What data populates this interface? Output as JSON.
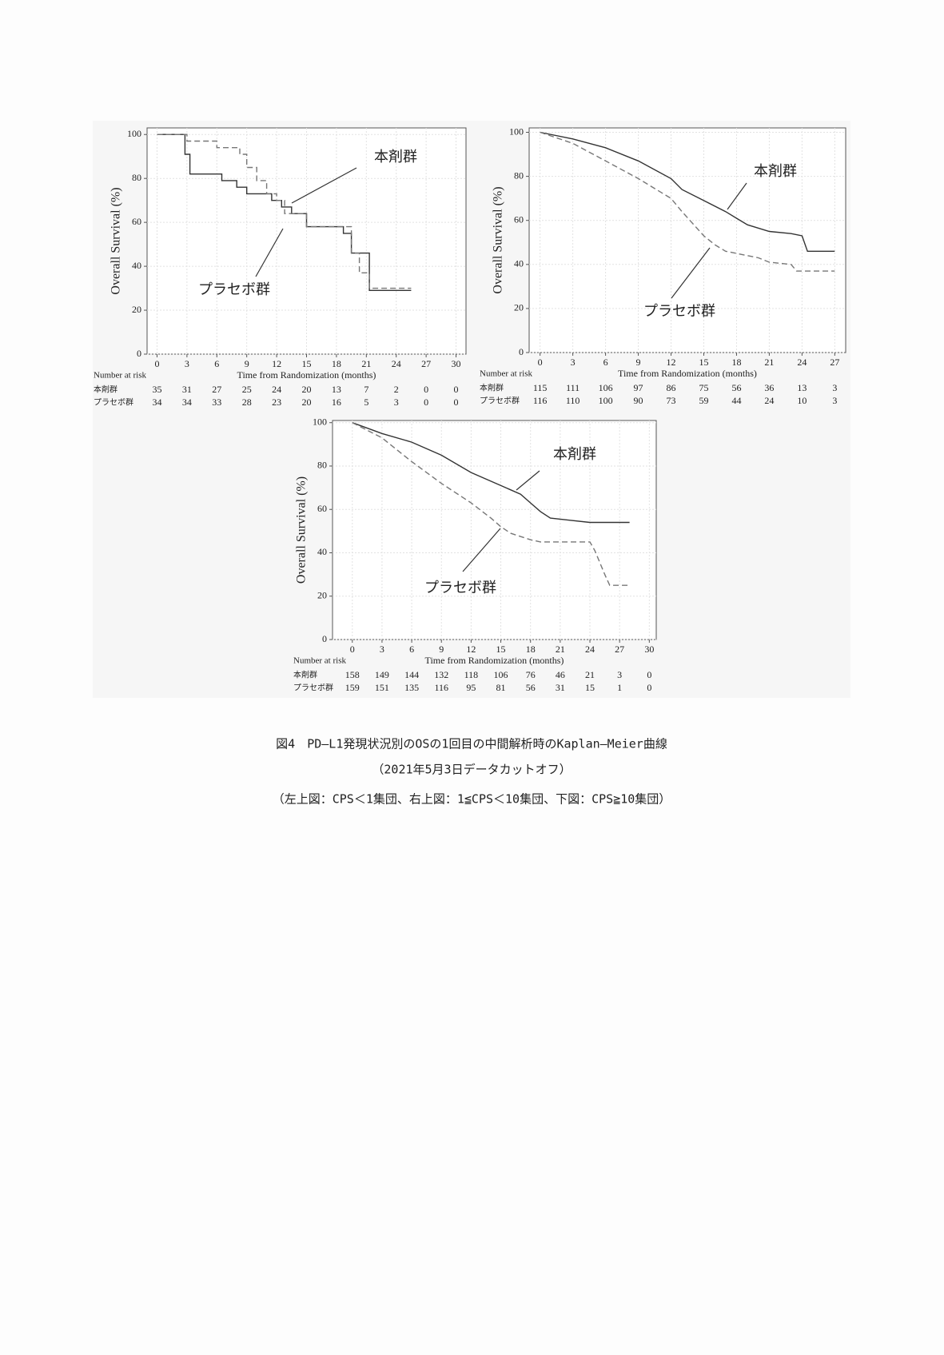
{
  "chart_data": [
    {
      "type": "line",
      "ylabel": "Overall Survival (%)",
      "xlabel": "Time from Randomization (months)",
      "xlim": [
        -1,
        31
      ],
      "ylim": [
        0,
        103
      ],
      "xticks": [
        0,
        3,
        6,
        9,
        12,
        15,
        18,
        21,
        24,
        27,
        30
      ],
      "yticks": [
        0,
        20,
        40,
        60,
        80,
        100
      ],
      "grid": true,
      "series": [
        {
          "name": "本剤群",
          "color": "#333333",
          "style": "solid",
          "x": [
            0,
            2.8,
            2.8,
            3.3,
            3.3,
            6.5,
            6.5,
            8,
            8,
            9,
            9,
            11.5,
            11.5,
            12.5,
            12.5,
            13.5,
            13.5,
            15,
            15,
            18.7,
            18.7,
            19.5,
            19.5,
            21.3,
            21.3,
            25.5
          ],
          "values": [
            100,
            100,
            91,
            91,
            82,
            82,
            79,
            79,
            76,
            76,
            73,
            73,
            70,
            70,
            67,
            67,
            64,
            64,
            58,
            58,
            55,
            55,
            46,
            46,
            29,
            29
          ]
        },
        {
          "name": "プラセボ群",
          "color": "#777777",
          "style": "dashed",
          "x": [
            0,
            3,
            3,
            6,
            6,
            8.3,
            8.3,
            9,
            9,
            10,
            10,
            11,
            11,
            12,
            12,
            12.8,
            12.8,
            15,
            15,
            19.5,
            19.5,
            20.3,
            20.3,
            21.3,
            21.3,
            25.5
          ],
          "values": [
            100,
            100,
            97,
            97,
            94,
            94,
            91,
            91,
            85,
            85,
            79,
            79,
            73,
            73,
            70,
            70,
            64,
            64,
            58,
            58,
            46,
            46,
            37,
            37,
            30,
            30
          ]
        }
      ],
      "risk_table": {
        "title": "Number at risk",
        "rows": [
          {
            "label": "本剤群",
            "values": [
              35,
              31,
              27,
              25,
              24,
              20,
              13,
              7,
              2,
              0,
              0
            ]
          },
          {
            "label": "プラセボ群",
            "values": [
              34,
              34,
              33,
              28,
              23,
              20,
              16,
              5,
              3,
              0,
              0
            ]
          }
        ]
      }
    },
    {
      "type": "line",
      "ylabel": "Overall Survival (%)",
      "xlabel": "Time from Randomization (months)",
      "xlim": [
        -1,
        28
      ],
      "ylim": [
        0,
        102
      ],
      "xticks": [
        0,
        3,
        6,
        9,
        12,
        15,
        18,
        21,
        24,
        27
      ],
      "yticks": [
        0,
        20,
        40,
        60,
        80,
        100
      ],
      "grid": true,
      "series": [
        {
          "name": "本剤群",
          "color": "#333333",
          "style": "solid",
          "x": [
            0,
            3,
            6,
            9,
            12,
            13,
            15,
            17,
            18,
            19,
            21,
            23,
            24,
            24.5,
            27
          ],
          "values": [
            100,
            97,
            93,
            87,
            79,
            74,
            69,
            64,
            61,
            58,
            55,
            54,
            53,
            46,
            46
          ]
        },
        {
          "name": "プラセボ群",
          "color": "#777777",
          "style": "dashed",
          "x": [
            0,
            3,
            6,
            9,
            12,
            13,
            15,
            16,
            17,
            18,
            20,
            21,
            23,
            23.5,
            27
          ],
          "values": [
            100,
            95,
            87,
            79,
            70,
            64,
            53,
            49,
            46,
            45,
            43,
            41,
            40,
            37,
            37
          ]
        }
      ],
      "risk_table": {
        "title": "Number at risk",
        "rows": [
          {
            "label": "本剤群",
            "values": [
              115,
              111,
              106,
              97,
              86,
              75,
              56,
              36,
              13,
              3
            ]
          },
          {
            "label": "プラセボ群",
            "values": [
              116,
              110,
              100,
              90,
              73,
              59,
              44,
              24,
              10,
              3
            ]
          }
        ]
      }
    },
    {
      "type": "line",
      "ylabel": "Overall Survival (%)",
      "xlabel": "Time from Randomization (months)",
      "xlim": [
        -2,
        30.7
      ],
      "ylim": [
        0,
        101
      ],
      "xticks": [
        0,
        3,
        6,
        9,
        12,
        15,
        18,
        21,
        24,
        27,
        30
      ],
      "yticks": [
        0,
        20,
        40,
        60,
        80,
        100
      ],
      "grid": true,
      "series": [
        {
          "name": "本剤群",
          "color": "#333333",
          "style": "solid",
          "x": [
            0,
            3,
            6,
            9,
            12,
            15,
            17,
            18,
            19,
            20,
            22,
            24,
            28
          ],
          "values": [
            100,
            95,
            91,
            85,
            77,
            71,
            67,
            63,
            59,
            56,
            55,
            54,
            54
          ]
        },
        {
          "name": "プラセボ群",
          "color": "#777777",
          "style": "dashed",
          "x": [
            0,
            3,
            6,
            9,
            12,
            14,
            15,
            16,
            18,
            19,
            24,
            24.5,
            25.5,
            26,
            28
          ],
          "values": [
            100,
            93,
            82,
            72,
            63,
            56,
            52,
            49,
            46,
            45,
            45,
            41,
            30,
            25,
            25
          ]
        }
      ],
      "risk_table": {
        "title": "Number at risk",
        "rows": [
          {
            "label": "本剤群",
            "values": [
              158,
              149,
              144,
              132,
              118,
              106,
              76,
              46,
              21,
              3,
              0
            ]
          },
          {
            "label": "プラセボ群",
            "values": [
              159,
              151,
              135,
              116,
              95,
              81,
              56,
              31,
              15,
              1,
              0
            ]
          }
        ]
      }
    }
  ],
  "caption": [
    "図4　PD—L1発現状況別のOSの1回目の中間解析時のKaplan—Meier曲線",
    "（2021年5月3日データカットオフ）",
    "（左上図：CPS＜1集団、右上図：1≦CPS＜10集団、下図：CPS≧10集団）"
  ]
}
